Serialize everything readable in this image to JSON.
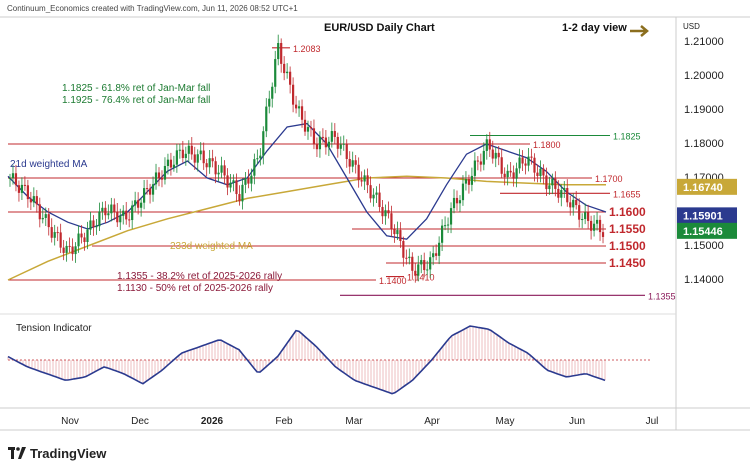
{
  "header": {
    "attribution": "Continuum_Economics created with TradingView.com, Jun 11, 2026 08:52 UTC+1",
    "title": "EUR/USD Daily Chart",
    "view": "1-2 day view",
    "currency": "USD",
    "brand": "TradingView"
  },
  "colors": {
    "up": "#1b8a3a",
    "down": "#c0282d",
    "ma21": "#2b3a8f",
    "ma233": "#c8a838",
    "resistance": "#c0282d",
    "support": "#c0282d",
    "fib_note_top": "#1b7a30",
    "fib_note_bottom": "#8a1a3a",
    "arrow": "#8b6e1e"
  },
  "chart_data": [
    {
      "type": "candlestick",
      "title": "EUR/USD Daily Chart",
      "ylim": [
        1.1355,
        1.2125
      ],
      "yticks": [
        "1.21000",
        "1.20000",
        "1.19000",
        "1.18000",
        "1.17000",
        "1.16000",
        "1.15000",
        "1.14000"
      ],
      "xticks": [
        "Nov",
        "Dec",
        "2026",
        "Feb",
        "Mar",
        "Apr",
        "May",
        "Jun",
        "Jul"
      ],
      "price_tags": [
        {
          "label": "1.16740",
          "value": 1.1674,
          "color": "#c8a838"
        },
        {
          "label": "1.15901",
          "value": 1.15901,
          "color": "#2b3a8f"
        },
        {
          "label": "1.15446",
          "value": 1.15446,
          "color": "#1b8a3a"
        }
      ],
      "levels": [
        {
          "label": "1.2083",
          "value": 1.2083
        },
        {
          "label": "1.1825",
          "value": 1.1825
        },
        {
          "label": "1.1800",
          "value": 1.18
        },
        {
          "label": "1.1700",
          "value": 1.17
        },
        {
          "label": "1.1655",
          "value": 1.1655
        },
        {
          "label": "1.1600",
          "value": 1.16
        },
        {
          "label": "1.1550",
          "value": 1.155
        },
        {
          "label": "1.1500",
          "value": 1.15
        },
        {
          "label": "1.1450",
          "value": 1.145
        },
        {
          "label": "1.1410",
          "value": 1.141
        },
        {
          "label": "1.1400",
          "value": 1.14
        },
        {
          "label": "1.1355",
          "value": 1.1355
        }
      ],
      "annotations": [
        "1.1825 - 61.8% ret of Jan-Mar fall",
        "1.1925 - 76.4% ret of Jan-Mar fall",
        "21d weighted MA",
        "233d weighted MA",
        "1.1355 - 38.2% ret of 2025-2026 rally",
        "1.1130 - 50% ret of 2025-2026 rally"
      ],
      "series": [
        {
          "name": "21d weighted MA",
          "values": [
            1.1705,
            1.1645,
            1.16,
            1.157,
            1.155,
            1.157,
            1.16,
            1.166,
            1.172,
            1.175,
            1.17,
            1.168,
            1.17,
            1.178,
            1.185,
            1.186,
            1.18,
            1.17,
            1.16,
            1.153,
            1.152,
            1.158,
            1.168,
            1.177,
            1.18,
            1.178,
            1.176,
            1.172,
            1.166,
            1.162,
            1.16
          ]
        },
        {
          "name": "233d weighted MA",
          "values": [
            1.14,
            1.1455,
            1.15,
            1.1545,
            1.158,
            1.161,
            1.164,
            1.166,
            1.168,
            1.17,
            1.1705,
            1.17,
            1.169,
            1.1685,
            1.168,
            1.168
          ]
        },
        {
          "name": "EUR/USD close",
          "values": [
            1.17,
            1.165,
            1.156,
            1.148,
            1.154,
            1.161,
            1.158,
            1.165,
            1.172,
            1.178,
            1.176,
            1.172,
            1.165,
            1.176,
            1.2083,
            1.19,
            1.18,
            1.182,
            1.173,
            1.165,
            1.156,
            1.143,
            1.145,
            1.16,
            1.17,
            1.18,
            1.17,
            1.176,
            1.169,
            1.165,
            1.158,
            1.1545
          ]
        }
      ]
    },
    {
      "type": "line",
      "title": "Tension Indicator",
      "series": [
        {
          "name": "Tension Indicator",
          "values": [
            0.1,
            -0.2,
            -0.4,
            -0.6,
            -0.5,
            -0.2,
            -0.4,
            -0.7,
            -0.3,
            0.2,
            0.4,
            0.6,
            0.3,
            -0.4,
            0.1,
            0.9,
            0.4,
            -0.2,
            -0.6,
            -0.8,
            -1.0,
            -0.6,
            0.0,
            0.7,
            1.0,
            0.9,
            0.5,
            0.2,
            -0.3,
            -0.5,
            -0.4,
            -0.6
          ]
        }
      ]
    }
  ]
}
